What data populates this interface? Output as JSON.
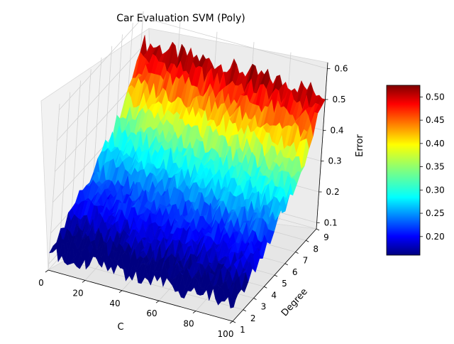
{
  "chart_data": {
    "type": "surface",
    "title": "Car Evaluation SVM (Poly)",
    "xlabel": "C",
    "ylabel": "Degree",
    "zlabel": "Error",
    "xlim": [
      0,
      100
    ],
    "ylim": [
      1,
      9
    ],
    "zlim": [
      0.1,
      0.6
    ],
    "x_ticks": [
      "0",
      "20",
      "40",
      "60",
      "80",
      "100"
    ],
    "y_ticks": [
      "1",
      "2",
      "3",
      "4",
      "5",
      "6",
      "7",
      "8",
      "9"
    ],
    "z_ticks": [
      "0.1",
      "0.2",
      "0.3",
      "0.4",
      "0.5",
      "0.6"
    ],
    "colormap": "jet",
    "colorbar": {
      "range": [
        0.16,
        0.525
      ],
      "ticks": [
        "0.20",
        "0.25",
        "0.30",
        "0.35",
        "0.40",
        "0.45",
        "0.50"
      ]
    },
    "degree_levels": [
      {
        "degree": 1,
        "error": 0.14
      },
      {
        "degree": 3,
        "error": 0.19
      },
      {
        "degree": 5,
        "error": 0.25
      },
      {
        "degree": 7,
        "error": 0.33
      },
      {
        "degree": 9,
        "error": 0.52
      }
    ],
    "grid": true
  }
}
